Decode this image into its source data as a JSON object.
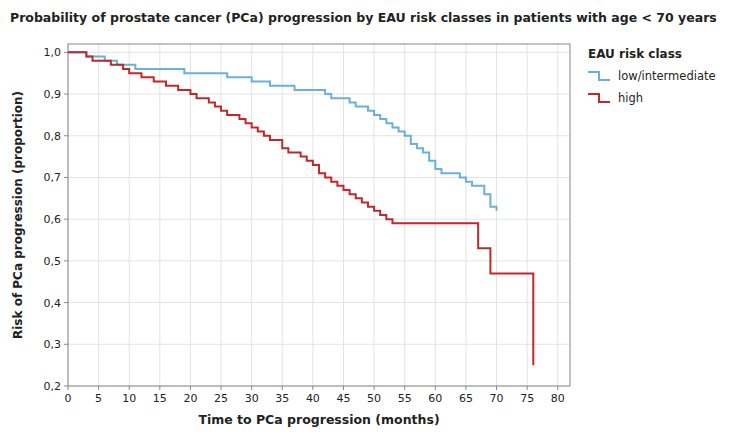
{
  "chart_data": {
    "type": "step",
    "title": "Probability of prostate cancer (PCa) progression by EAU risk classes in patients with age < 70 years",
    "xlabel": "Time to PCa progression (months)",
    "ylabel": "Risk of PCa progression (proportion)",
    "legend_title": "EAU risk class",
    "legend": "right",
    "grid": true,
    "xlim": [
      0,
      82
    ],
    "ylim": [
      0.2,
      1.02
    ],
    "xticks": [
      0,
      5,
      10,
      15,
      20,
      25,
      30,
      35,
      40,
      45,
      50,
      55,
      60,
      65,
      70,
      75,
      80
    ],
    "yticks": [
      {
        "value": 0.2,
        "label": "0,2"
      },
      {
        "value": 0.3,
        "label": "0,3"
      },
      {
        "value": 0.4,
        "label": "0,4"
      },
      {
        "value": 0.5,
        "label": "0,5"
      },
      {
        "value": 0.6,
        "label": "0,6"
      },
      {
        "value": 0.7,
        "label": "0,7"
      },
      {
        "value": 0.8,
        "label": "0,8"
      },
      {
        "value": 0.9,
        "label": "0,9"
      },
      {
        "value": 1.0,
        "label": "1,0"
      }
    ],
    "series": [
      {
        "name": "low/intermediate",
        "color": "#6ab0d8",
        "x": [
          0,
          2,
          3,
          5,
          6,
          7,
          8,
          9,
          10,
          11,
          12,
          13,
          14,
          15,
          16,
          17,
          18,
          19,
          20,
          21,
          22,
          23,
          24,
          25,
          26,
          27,
          28,
          29,
          30,
          31,
          32,
          33,
          34,
          35,
          36,
          37,
          38,
          39,
          40,
          41,
          42,
          43,
          44,
          45,
          46,
          47,
          48,
          49,
          50,
          51,
          52,
          53,
          54,
          55,
          56,
          57,
          58,
          59,
          60,
          61,
          62,
          63,
          64,
          65,
          66,
          67,
          68,
          69,
          70
        ],
        "values": [
          1.0,
          1.0,
          0.99,
          0.99,
          0.98,
          0.98,
          0.97,
          0.97,
          0.97,
          0.96,
          0.96,
          0.96,
          0.96,
          0.96,
          0.96,
          0.96,
          0.96,
          0.95,
          0.95,
          0.95,
          0.95,
          0.95,
          0.95,
          0.95,
          0.94,
          0.94,
          0.94,
          0.94,
          0.93,
          0.93,
          0.93,
          0.92,
          0.92,
          0.92,
          0.92,
          0.91,
          0.91,
          0.91,
          0.91,
          0.91,
          0.9,
          0.89,
          0.89,
          0.89,
          0.88,
          0.87,
          0.87,
          0.86,
          0.85,
          0.84,
          0.83,
          0.82,
          0.81,
          0.8,
          0.78,
          0.77,
          0.76,
          0.74,
          0.72,
          0.71,
          0.71,
          0.71,
          0.7,
          0.69,
          0.68,
          0.68,
          0.66,
          0.63,
          0.62
        ]
      },
      {
        "name": "high",
        "color": "#c0282a",
        "x": [
          0,
          2,
          3,
          4,
          5,
          6,
          7,
          8,
          9,
          10,
          11,
          12,
          13,
          14,
          15,
          16,
          17,
          18,
          19,
          20,
          21,
          22,
          23,
          24,
          25,
          26,
          27,
          28,
          29,
          30,
          31,
          32,
          33,
          34,
          35,
          36,
          37,
          38,
          39,
          40,
          41,
          42,
          43,
          44,
          45,
          46,
          47,
          48,
          49,
          50,
          51,
          52,
          53,
          54,
          55,
          56,
          57,
          58,
          59,
          60,
          61,
          62,
          63,
          64,
          65,
          66,
          67,
          68,
          69,
          70,
          75,
          76
        ],
        "values": [
          1.0,
          1.0,
          0.99,
          0.98,
          0.98,
          0.98,
          0.97,
          0.97,
          0.96,
          0.95,
          0.95,
          0.94,
          0.94,
          0.93,
          0.93,
          0.92,
          0.92,
          0.91,
          0.91,
          0.9,
          0.89,
          0.89,
          0.88,
          0.87,
          0.86,
          0.85,
          0.85,
          0.84,
          0.83,
          0.82,
          0.81,
          0.8,
          0.79,
          0.79,
          0.77,
          0.76,
          0.76,
          0.75,
          0.74,
          0.73,
          0.71,
          0.7,
          0.69,
          0.68,
          0.67,
          0.66,
          0.65,
          0.64,
          0.63,
          0.62,
          0.61,
          0.6,
          0.59,
          0.59,
          0.59,
          0.59,
          0.59,
          0.59,
          0.59,
          0.59,
          0.59,
          0.59,
          0.59,
          0.59,
          0.59,
          0.59,
          0.53,
          0.53,
          0.47,
          0.47,
          0.47,
          0.25
        ]
      }
    ]
  }
}
